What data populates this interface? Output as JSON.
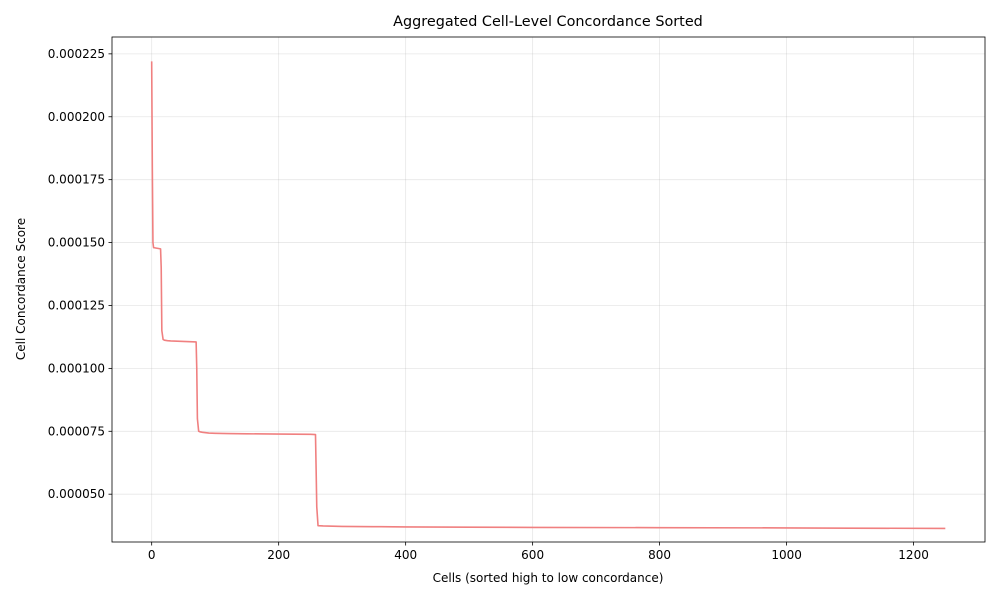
{
  "chart_data": {
    "type": "line",
    "title": "Aggregated Cell-Level Concordance Sorted",
    "xlabel": "Cells (sorted high to low concordance)",
    "ylabel": "Cell Concordance Score",
    "xlim": [
      -62.5,
      1312.5
    ],
    "ylim": [
      3.1e-05,
      0.0002317
    ],
    "x_ticks": [
      0,
      200,
      400,
      600,
      800,
      1000,
      1200
    ],
    "x_tick_labels": [
      "0",
      "200",
      "400",
      "600",
      "800",
      "1000",
      "1200"
    ],
    "y_ticks": [
      5e-05,
      7.5e-05,
      0.0001,
      0.000125,
      0.00015,
      0.000175,
      0.0002,
      0.000225
    ],
    "y_tick_labels": [
      "0.000050",
      "0.000075",
      "0.000100",
      "0.000125",
      "0.000150",
      "0.000175",
      "0.000200",
      "0.000225"
    ],
    "grid": true,
    "series": [
      {
        "color": "#f08080",
        "x": [
          0,
          1,
          2,
          3,
          14,
          15,
          16,
          18,
          20,
          25,
          30,
          40,
          50,
          60,
          70,
          71,
          72,
          74,
          76,
          80,
          90,
          100,
          120,
          150,
          200,
          250,
          258,
          259,
          260,
          262,
          270,
          300,
          350,
          400,
          500,
          600,
          800,
          1000,
          1100,
          1250
        ],
        "y": [
          0.000222,
          0.00018,
          0.00015,
          0.000148,
          0.0001475,
          0.00014,
          0.000115,
          0.0001115,
          0.0001112,
          0.000111,
          0.0001109,
          0.0001108,
          0.0001107,
          0.0001106,
          0.0001105,
          0.0001,
          8e-05,
          7.5e-05,
          7.48e-05,
          7.46e-05,
          7.43e-05,
          7.42e-05,
          7.41e-05,
          7.4e-05,
          7.39e-05,
          7.38e-05,
          7.37e-05,
          6e-05,
          4.5e-05,
          3.75e-05,
          3.74e-05,
          3.72e-05,
          3.71e-05,
          3.7e-05,
          3.69e-05,
          3.68e-05,
          3.67e-05,
          3.66e-05,
          3.65e-05,
          3.64e-05
        ]
      }
    ]
  }
}
